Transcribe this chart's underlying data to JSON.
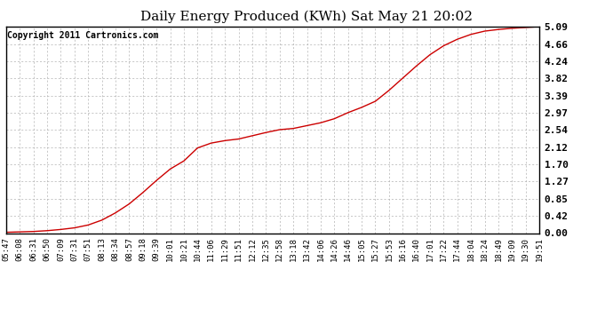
{
  "title": "Daily Energy Produced (KWh) Sat May 21 20:02",
  "copyright_text": "Copyright 2011 Cartronics.com",
  "line_color": "#cc0000",
  "background_color": "#ffffff",
  "plot_bg_color": "#ffffff",
  "grid_color": "#b0b0b0",
  "yticks": [
    0.0,
    0.42,
    0.85,
    1.27,
    1.7,
    2.12,
    2.54,
    2.97,
    3.39,
    3.82,
    4.24,
    4.66,
    5.09
  ],
  "ylim": [
    0.0,
    5.09
  ],
  "x_labels": [
    "05:47",
    "06:08",
    "06:31",
    "06:50",
    "07:09",
    "07:31",
    "07:51",
    "08:13",
    "08:34",
    "08:57",
    "09:18",
    "09:39",
    "10:01",
    "10:21",
    "10:44",
    "11:06",
    "11:29",
    "11:51",
    "12:12",
    "12:35",
    "12:58",
    "13:18",
    "13:42",
    "14:06",
    "14:26",
    "14:46",
    "15:05",
    "15:27",
    "15:53",
    "16:16",
    "16:40",
    "17:01",
    "17:22",
    "17:44",
    "18:04",
    "18:24",
    "18:49",
    "19:09",
    "19:30",
    "19:51"
  ],
  "y_values": [
    0.02,
    0.03,
    0.04,
    0.06,
    0.09,
    0.13,
    0.2,
    0.32,
    0.5,
    0.72,
    1.0,
    1.3,
    1.58,
    1.78,
    2.1,
    2.22,
    2.28,
    2.32,
    2.4,
    2.48,
    2.55,
    2.58,
    2.65,
    2.72,
    2.82,
    2.97,
    3.1,
    3.25,
    3.52,
    3.82,
    4.12,
    4.4,
    4.62,
    4.78,
    4.9,
    4.98,
    5.02,
    5.05,
    5.07,
    5.09
  ],
  "title_fontsize": 11,
  "copyright_fontsize": 7,
  "tick_fontsize": 6.5,
  "ytick_fontsize": 8
}
